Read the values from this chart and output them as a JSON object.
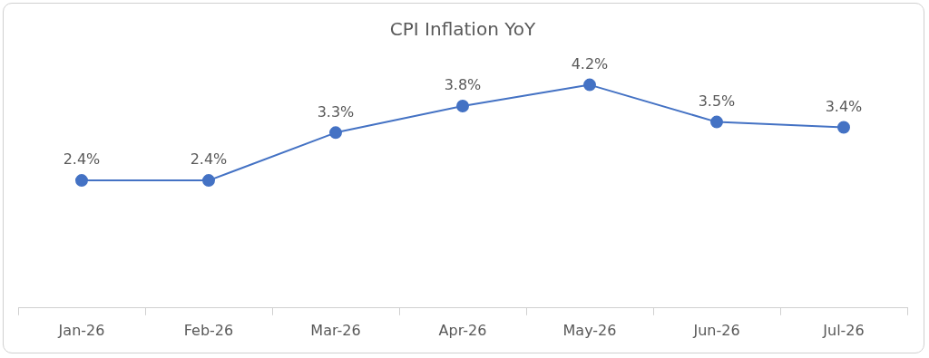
{
  "chart_data": {
    "type": "line",
    "title": "CPI Inflation YoY",
    "categories": [
      "Jan-26",
      "Feb-26",
      "Mar-26",
      "Apr-26",
      "May-26",
      "Jun-26",
      "Jul-26"
    ],
    "series": [
      {
        "color": "#4472c4",
        "values": [
          2.4,
          2.4,
          3.3,
          3.8,
          4.2,
          3.5,
          3.4
        ],
        "value_labels": [
          "2.4%",
          "2.4%",
          "3.3%",
          "3.8%",
          "4.2%",
          "3.5%",
          "3.4%"
        ]
      }
    ],
    "tick_labels": "x",
    "grid": false,
    "legend": false,
    "marker": "circle",
    "line_style": "solid"
  }
}
